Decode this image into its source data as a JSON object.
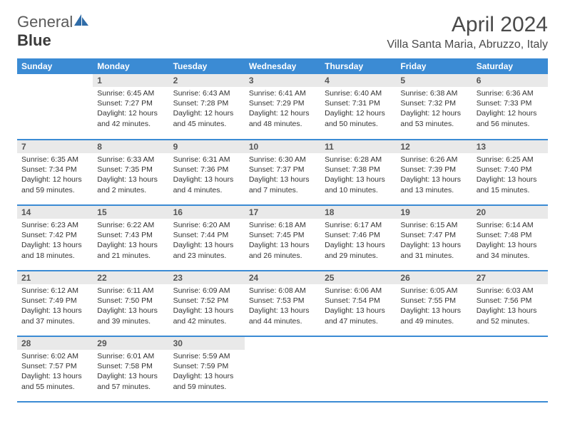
{
  "logo": {
    "word1": "General",
    "word2": "Blue",
    "icon_color": "#2f6ca8"
  },
  "title": "April 2024",
  "subtitle": "Villa Santa Maria, Abruzzo, Italy",
  "colors": {
    "header_bg": "#3b8bd4",
    "header_text": "#ffffff",
    "daynum_bg": "#e9e9e9",
    "daynum_text": "#555555",
    "row_border": "#3b8bd4",
    "body_text": "#333333"
  },
  "fonts": {
    "title_size": 30,
    "subtitle_size": 16,
    "th_size": 12,
    "daynum_size": 12,
    "cell_size": 10.5
  },
  "day_labels": [
    "Sunday",
    "Monday",
    "Tuesday",
    "Wednesday",
    "Thursday",
    "Friday",
    "Saturday"
  ],
  "weeks": [
    [
      null,
      {
        "n": "1",
        "sunrise": "Sunrise: 6:45 AM",
        "sunset": "Sunset: 7:27 PM",
        "dl1": "Daylight: 12 hours",
        "dl2": "and 42 minutes."
      },
      {
        "n": "2",
        "sunrise": "Sunrise: 6:43 AM",
        "sunset": "Sunset: 7:28 PM",
        "dl1": "Daylight: 12 hours",
        "dl2": "and 45 minutes."
      },
      {
        "n": "3",
        "sunrise": "Sunrise: 6:41 AM",
        "sunset": "Sunset: 7:29 PM",
        "dl1": "Daylight: 12 hours",
        "dl2": "and 48 minutes."
      },
      {
        "n": "4",
        "sunrise": "Sunrise: 6:40 AM",
        "sunset": "Sunset: 7:31 PM",
        "dl1": "Daylight: 12 hours",
        "dl2": "and 50 minutes."
      },
      {
        "n": "5",
        "sunrise": "Sunrise: 6:38 AM",
        "sunset": "Sunset: 7:32 PM",
        "dl1": "Daylight: 12 hours",
        "dl2": "and 53 minutes."
      },
      {
        "n": "6",
        "sunrise": "Sunrise: 6:36 AM",
        "sunset": "Sunset: 7:33 PM",
        "dl1": "Daylight: 12 hours",
        "dl2": "and 56 minutes."
      }
    ],
    [
      {
        "n": "7",
        "sunrise": "Sunrise: 6:35 AM",
        "sunset": "Sunset: 7:34 PM",
        "dl1": "Daylight: 12 hours",
        "dl2": "and 59 minutes."
      },
      {
        "n": "8",
        "sunrise": "Sunrise: 6:33 AM",
        "sunset": "Sunset: 7:35 PM",
        "dl1": "Daylight: 13 hours",
        "dl2": "and 2 minutes."
      },
      {
        "n": "9",
        "sunrise": "Sunrise: 6:31 AM",
        "sunset": "Sunset: 7:36 PM",
        "dl1": "Daylight: 13 hours",
        "dl2": "and 4 minutes."
      },
      {
        "n": "10",
        "sunrise": "Sunrise: 6:30 AM",
        "sunset": "Sunset: 7:37 PM",
        "dl1": "Daylight: 13 hours",
        "dl2": "and 7 minutes."
      },
      {
        "n": "11",
        "sunrise": "Sunrise: 6:28 AM",
        "sunset": "Sunset: 7:38 PM",
        "dl1": "Daylight: 13 hours",
        "dl2": "and 10 minutes."
      },
      {
        "n": "12",
        "sunrise": "Sunrise: 6:26 AM",
        "sunset": "Sunset: 7:39 PM",
        "dl1": "Daylight: 13 hours",
        "dl2": "and 13 minutes."
      },
      {
        "n": "13",
        "sunrise": "Sunrise: 6:25 AM",
        "sunset": "Sunset: 7:40 PM",
        "dl1": "Daylight: 13 hours",
        "dl2": "and 15 minutes."
      }
    ],
    [
      {
        "n": "14",
        "sunrise": "Sunrise: 6:23 AM",
        "sunset": "Sunset: 7:42 PM",
        "dl1": "Daylight: 13 hours",
        "dl2": "and 18 minutes."
      },
      {
        "n": "15",
        "sunrise": "Sunrise: 6:22 AM",
        "sunset": "Sunset: 7:43 PM",
        "dl1": "Daylight: 13 hours",
        "dl2": "and 21 minutes."
      },
      {
        "n": "16",
        "sunrise": "Sunrise: 6:20 AM",
        "sunset": "Sunset: 7:44 PM",
        "dl1": "Daylight: 13 hours",
        "dl2": "and 23 minutes."
      },
      {
        "n": "17",
        "sunrise": "Sunrise: 6:18 AM",
        "sunset": "Sunset: 7:45 PM",
        "dl1": "Daylight: 13 hours",
        "dl2": "and 26 minutes."
      },
      {
        "n": "18",
        "sunrise": "Sunrise: 6:17 AM",
        "sunset": "Sunset: 7:46 PM",
        "dl1": "Daylight: 13 hours",
        "dl2": "and 29 minutes."
      },
      {
        "n": "19",
        "sunrise": "Sunrise: 6:15 AM",
        "sunset": "Sunset: 7:47 PM",
        "dl1": "Daylight: 13 hours",
        "dl2": "and 31 minutes."
      },
      {
        "n": "20",
        "sunrise": "Sunrise: 6:14 AM",
        "sunset": "Sunset: 7:48 PM",
        "dl1": "Daylight: 13 hours",
        "dl2": "and 34 minutes."
      }
    ],
    [
      {
        "n": "21",
        "sunrise": "Sunrise: 6:12 AM",
        "sunset": "Sunset: 7:49 PM",
        "dl1": "Daylight: 13 hours",
        "dl2": "and 37 minutes."
      },
      {
        "n": "22",
        "sunrise": "Sunrise: 6:11 AM",
        "sunset": "Sunset: 7:50 PM",
        "dl1": "Daylight: 13 hours",
        "dl2": "and 39 minutes."
      },
      {
        "n": "23",
        "sunrise": "Sunrise: 6:09 AM",
        "sunset": "Sunset: 7:52 PM",
        "dl1": "Daylight: 13 hours",
        "dl2": "and 42 minutes."
      },
      {
        "n": "24",
        "sunrise": "Sunrise: 6:08 AM",
        "sunset": "Sunset: 7:53 PM",
        "dl1": "Daylight: 13 hours",
        "dl2": "and 44 minutes."
      },
      {
        "n": "25",
        "sunrise": "Sunrise: 6:06 AM",
        "sunset": "Sunset: 7:54 PM",
        "dl1": "Daylight: 13 hours",
        "dl2": "and 47 minutes."
      },
      {
        "n": "26",
        "sunrise": "Sunrise: 6:05 AM",
        "sunset": "Sunset: 7:55 PM",
        "dl1": "Daylight: 13 hours",
        "dl2": "and 49 minutes."
      },
      {
        "n": "27",
        "sunrise": "Sunrise: 6:03 AM",
        "sunset": "Sunset: 7:56 PM",
        "dl1": "Daylight: 13 hours",
        "dl2": "and 52 minutes."
      }
    ],
    [
      {
        "n": "28",
        "sunrise": "Sunrise: 6:02 AM",
        "sunset": "Sunset: 7:57 PM",
        "dl1": "Daylight: 13 hours",
        "dl2": "and 55 minutes."
      },
      {
        "n": "29",
        "sunrise": "Sunrise: 6:01 AM",
        "sunset": "Sunset: 7:58 PM",
        "dl1": "Daylight: 13 hours",
        "dl2": "and 57 minutes."
      },
      {
        "n": "30",
        "sunrise": "Sunrise: 5:59 AM",
        "sunset": "Sunset: 7:59 PM",
        "dl1": "Daylight: 13 hours",
        "dl2": "and 59 minutes."
      },
      null,
      null,
      null,
      null
    ]
  ]
}
